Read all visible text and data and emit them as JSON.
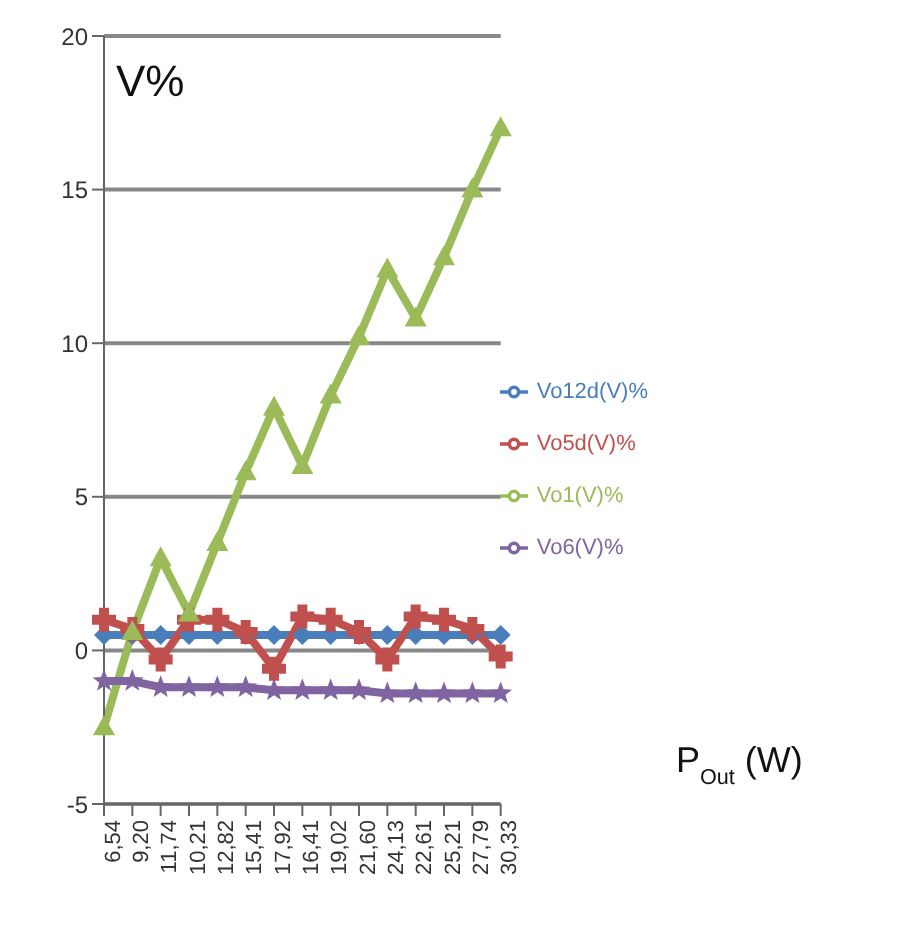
{
  "chart_data": {
    "type": "line",
    "ylabel": "V%",
    "xlabel": "P$_{Out}$ (W)",
    "categories": [
      "6,54",
      "9,20",
      "11,74",
      "10,21",
      "12,82",
      "15,41",
      "17,92",
      "16,41",
      "19,02",
      "21,60",
      "24,13",
      "22,61",
      "25,21",
      "27,79",
      "30,33"
    ],
    "series": [
      {
        "name": "Vo12d(V)%",
        "color": "#4a7ebb",
        "marker": "diamond",
        "values": [
          0.5,
          0.5,
          0.5,
          0.5,
          0.5,
          0.5,
          0.5,
          0.5,
          0.5,
          0.5,
          0.5,
          0.5,
          0.5,
          0.5,
          0.5
        ]
      },
      {
        "name": "Vo5d(V)%",
        "color": "#c0504d",
        "marker": "cross",
        "values": [
          1.0,
          0.7,
          -0.3,
          1.0,
          1.0,
          0.6,
          -0.6,
          1.1,
          1.0,
          0.6,
          -0.3,
          1.1,
          1.0,
          0.7,
          -0.2
        ]
      },
      {
        "name": "Vo1(V)%",
        "color": "#9bbb59",
        "marker": "triangle",
        "values": [
          -2.5,
          0.6,
          3.0,
          1.2,
          3.5,
          5.8,
          7.9,
          6.0,
          8.3,
          10.2,
          12.4,
          10.8,
          12.8,
          15.0,
          17.0
        ]
      },
      {
        "name": "Vo6(V)%",
        "color": "#8064a2",
        "marker": "star",
        "values": [
          -1.0,
          -1.0,
          -1.2,
          -1.2,
          -1.2,
          -1.2,
          -1.3,
          -1.3,
          -1.3,
          -1.3,
          -1.4,
          -1.4,
          -1.4,
          -1.4,
          -1.4
        ]
      }
    ],
    "ylim": [
      -5,
      20
    ],
    "yticks": [
      -5,
      0,
      5,
      10,
      15,
      20
    ],
    "grid": "y",
    "legend": "right"
  }
}
